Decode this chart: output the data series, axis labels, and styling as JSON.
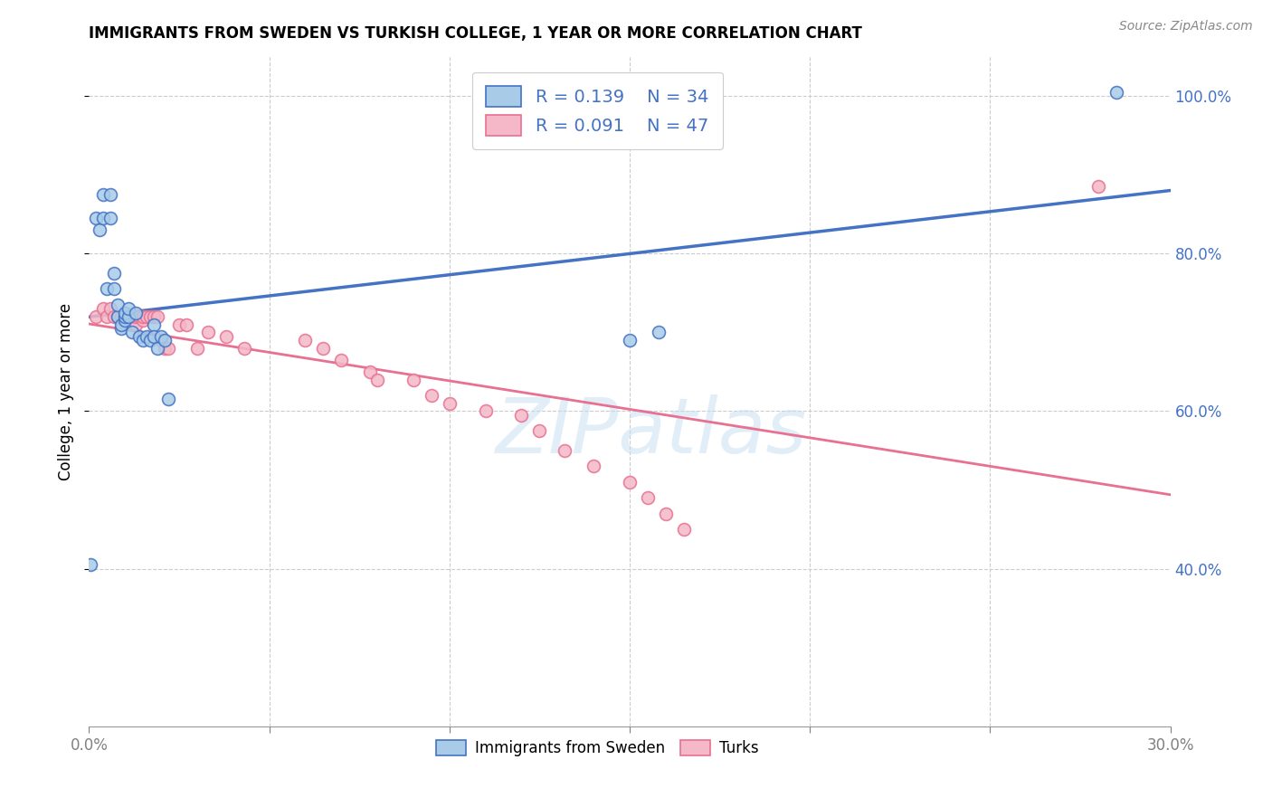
{
  "title": "IMMIGRANTS FROM SWEDEN VS TURKISH COLLEGE, 1 YEAR OR MORE CORRELATION CHART",
  "source": "Source: ZipAtlas.com",
  "ylabel": "College, 1 year or more",
  "xlim": [
    0.0,
    0.3
  ],
  "ylim": [
    0.2,
    1.05
  ],
  "xtick_positions": [
    0.0,
    0.05,
    0.1,
    0.15,
    0.2,
    0.25,
    0.3
  ],
  "xtick_labels": [
    "0.0%",
    "",
    "",
    "",
    "",
    "",
    "30.0%"
  ],
  "ytick_positions": [
    0.4,
    0.6,
    0.8,
    1.0
  ],
  "ytick_labels": [
    "40.0%",
    "60.0%",
    "80.0%",
    "100.0%"
  ],
  "legend_r1": "0.139",
  "legend_n1": "34",
  "legend_r2": "0.091",
  "legend_n2": "47",
  "color_sweden": "#a8cce8",
  "color_turks": "#f4b8c8",
  "color_line_sweden": "#4472c4",
  "color_line_turks": "#e87090",
  "color_text_blue": "#4472c4",
  "watermark_text": "ZIPatlas",
  "legend_label1": "Immigrants from Sweden",
  "legend_label2": "Turks",
  "sweden_x": [
    0.0005,
    0.002,
    0.003,
    0.004,
    0.004,
    0.005,
    0.006,
    0.006,
    0.007,
    0.007,
    0.008,
    0.008,
    0.009,
    0.009,
    0.01,
    0.01,
    0.01,
    0.011,
    0.011,
    0.012,
    0.013,
    0.014,
    0.015,
    0.016,
    0.017,
    0.018,
    0.018,
    0.019,
    0.02,
    0.021,
    0.022,
    0.15,
    0.158,
    0.285
  ],
  "sweden_y": [
    0.405,
    0.845,
    0.83,
    0.845,
    0.875,
    0.755,
    0.845,
    0.875,
    0.755,
    0.775,
    0.72,
    0.735,
    0.705,
    0.71,
    0.715,
    0.72,
    0.725,
    0.72,
    0.73,
    0.7,
    0.725,
    0.695,
    0.69,
    0.695,
    0.69,
    0.71,
    0.695,
    0.68,
    0.695,
    0.69,
    0.615,
    0.69,
    0.7,
    1.005
  ],
  "turks_x": [
    0.002,
    0.004,
    0.005,
    0.006,
    0.007,
    0.008,
    0.009,
    0.01,
    0.011,
    0.012,
    0.012,
    0.013,
    0.013,
    0.014,
    0.015,
    0.015,
    0.016,
    0.017,
    0.018,
    0.019,
    0.02,
    0.021,
    0.022,
    0.025,
    0.027,
    0.03,
    0.033,
    0.038,
    0.043,
    0.06,
    0.065,
    0.07,
    0.078,
    0.08,
    0.09,
    0.095,
    0.1,
    0.11,
    0.12,
    0.125,
    0.132,
    0.14,
    0.15,
    0.155,
    0.16,
    0.165,
    0.28
  ],
  "turks_y": [
    0.72,
    0.73,
    0.72,
    0.73,
    0.72,
    0.72,
    0.72,
    0.72,
    0.72,
    0.72,
    0.72,
    0.71,
    0.72,
    0.72,
    0.715,
    0.72,
    0.72,
    0.72,
    0.72,
    0.72,
    0.69,
    0.68,
    0.68,
    0.71,
    0.71,
    0.68,
    0.7,
    0.695,
    0.68,
    0.69,
    0.68,
    0.665,
    0.65,
    0.64,
    0.64,
    0.62,
    0.61,
    0.6,
    0.595,
    0.575,
    0.55,
    0.53,
    0.51,
    0.49,
    0.47,
    0.45,
    0.885
  ]
}
